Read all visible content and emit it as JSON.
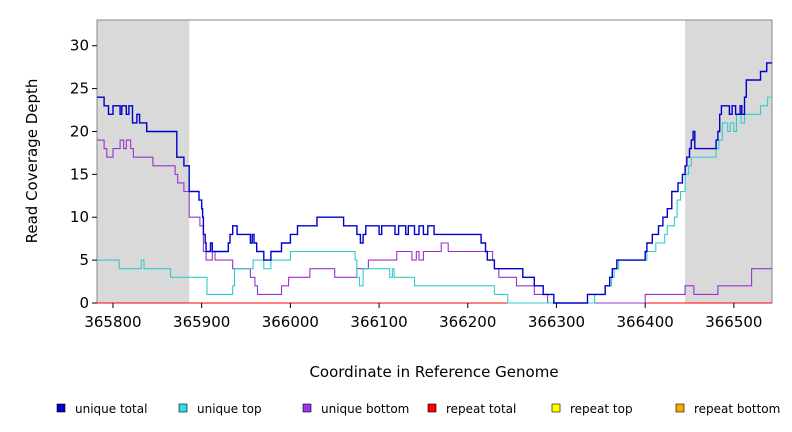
{
  "chart_data": {
    "type": "line",
    "title": "",
    "xlabel": "Coordinate in Reference Genome",
    "ylabel": "Read Coverage Depth",
    "xlim": [
      365782,
      366543
    ],
    "ylim": [
      0,
      33
    ],
    "xticks": [
      365800,
      365900,
      366000,
      366100,
      366200,
      366300,
      366400,
      366500
    ],
    "yticks": [
      0,
      5,
      10,
      15,
      20,
      25,
      30
    ],
    "shaded_regions": [
      [
        365782,
        365886
      ],
      [
        366445,
        366543
      ]
    ],
    "shade_color": "#d9d9d9",
    "legend_position": "bottom",
    "series": [
      {
        "name": "unique total",
        "color": "#0000cc",
        "points": [
          [
            365782,
            24
          ],
          [
            365790,
            23
          ],
          [
            365795,
            22
          ],
          [
            365800,
            23
          ],
          [
            365808,
            22
          ],
          [
            365810,
            23
          ],
          [
            365815,
            22
          ],
          [
            365818,
            23
          ],
          [
            365822,
            21
          ],
          [
            365827,
            22
          ],
          [
            365830,
            21
          ],
          [
            365838,
            20
          ],
          [
            365872,
            17
          ],
          [
            365880,
            16
          ],
          [
            365886,
            13
          ],
          [
            365897,
            12
          ],
          [
            365900,
            11
          ],
          [
            365901,
            10
          ],
          [
            365902,
            8
          ],
          [
            365904,
            7
          ],
          [
            365905,
            6
          ],
          [
            365910,
            7
          ],
          [
            365912,
            6
          ],
          [
            365930,
            7
          ],
          [
            365932,
            8
          ],
          [
            365935,
            9
          ],
          [
            365940,
            8
          ],
          [
            365955,
            7
          ],
          [
            365957,
            8
          ],
          [
            365959,
            7
          ],
          [
            365962,
            6
          ],
          [
            365970,
            5
          ],
          [
            365978,
            6
          ],
          [
            365990,
            7
          ],
          [
            366000,
            8
          ],
          [
            366008,
            9
          ],
          [
            366030,
            10
          ],
          [
            366060,
            9
          ],
          [
            366075,
            8
          ],
          [
            366079,
            7
          ],
          [
            366082,
            8
          ],
          [
            366085,
            9
          ],
          [
            366100,
            8
          ],
          [
            366103,
            9
          ],
          [
            366118,
            8
          ],
          [
            366122,
            9
          ],
          [
            366130,
            8
          ],
          [
            366133,
            9
          ],
          [
            366140,
            8
          ],
          [
            366145,
            9
          ],
          [
            366150,
            8
          ],
          [
            366155,
            9
          ],
          [
            366162,
            8
          ],
          [
            366170,
            8
          ],
          [
            366215,
            7
          ],
          [
            366220,
            6
          ],
          [
            366222,
            5
          ],
          [
            366230,
            4
          ],
          [
            366262,
            3
          ],
          [
            366275,
            2
          ],
          [
            366285,
            1
          ],
          [
            366297,
            0
          ],
          [
            366335,
            1
          ],
          [
            366355,
            2
          ],
          [
            366360,
            3
          ],
          [
            366363,
            4
          ],
          [
            366368,
            5
          ],
          [
            366400,
            6
          ],
          [
            366402,
            7
          ],
          [
            366408,
            8
          ],
          [
            366415,
            9
          ],
          [
            366420,
            10
          ],
          [
            366425,
            11
          ],
          [
            366430,
            13
          ],
          [
            366437,
            14
          ],
          [
            366442,
            15
          ],
          [
            366445,
            16
          ],
          [
            366447,
            17
          ],
          [
            366450,
            18
          ],
          [
            366452,
            19
          ],
          [
            366454,
            20
          ],
          [
            366456,
            18
          ],
          [
            366480,
            19
          ],
          [
            366482,
            20
          ],
          [
            366484,
            22
          ],
          [
            366486,
            23
          ],
          [
            366495,
            22
          ],
          [
            366498,
            23
          ],
          [
            366502,
            22
          ],
          [
            366507,
            23
          ],
          [
            366509,
            22
          ],
          [
            366512,
            24
          ],
          [
            366514,
            26
          ],
          [
            366530,
            27
          ],
          [
            366537,
            28
          ],
          [
            366543,
            28
          ]
        ]
      },
      {
        "name": "unique top",
        "color": "#33cccc",
        "points": [
          [
            365782,
            5
          ],
          [
            365807,
            4
          ],
          [
            365832,
            5
          ],
          [
            365835,
            4
          ],
          [
            365865,
            3
          ],
          [
            365906,
            1
          ],
          [
            365935,
            2
          ],
          [
            365937,
            4
          ],
          [
            365958,
            5
          ],
          [
            365963,
            5
          ],
          [
            365970,
            4
          ],
          [
            365978,
            5
          ],
          [
            366000,
            6
          ],
          [
            366073,
            5
          ],
          [
            366075,
            3
          ],
          [
            366078,
            2
          ],
          [
            366082,
            4
          ],
          [
            366112,
            3
          ],
          [
            366115,
            4
          ],
          [
            366117,
            3
          ],
          [
            366140,
            2
          ],
          [
            366230,
            1
          ],
          [
            366245,
            0
          ],
          [
            366343,
            1
          ],
          [
            366355,
            2
          ],
          [
            366362,
            3
          ],
          [
            366365,
            4
          ],
          [
            366370,
            5
          ],
          [
            366400,
            5
          ],
          [
            366402,
            6
          ],
          [
            366412,
            7
          ],
          [
            366422,
            8
          ],
          [
            366425,
            9
          ],
          [
            366433,
            10
          ],
          [
            366436,
            12
          ],
          [
            366440,
            13
          ],
          [
            366445,
            15
          ],
          [
            366449,
            16
          ],
          [
            366452,
            17
          ],
          [
            366480,
            18
          ],
          [
            366483,
            19
          ],
          [
            366487,
            21
          ],
          [
            366493,
            20
          ],
          [
            366496,
            21
          ],
          [
            366500,
            20
          ],
          [
            366503,
            22
          ],
          [
            366508,
            21
          ],
          [
            366512,
            22
          ],
          [
            366530,
            23
          ],
          [
            366538,
            24
          ],
          [
            366543,
            24
          ]
        ]
      },
      {
        "name": "unique bottom",
        "color": "#9933cc",
        "points": [
          [
            365782,
            19
          ],
          [
            365790,
            18
          ],
          [
            365793,
            17
          ],
          [
            365800,
            18
          ],
          [
            365808,
            19
          ],
          [
            365812,
            18
          ],
          [
            365815,
            19
          ],
          [
            365820,
            18
          ],
          [
            365823,
            17
          ],
          [
            365845,
            16
          ],
          [
            365870,
            15
          ],
          [
            365873,
            14
          ],
          [
            365880,
            13
          ],
          [
            365886,
            10
          ],
          [
            365898,
            9
          ],
          [
            365902,
            6
          ],
          [
            365905,
            5
          ],
          [
            365912,
            6
          ],
          [
            365915,
            5
          ],
          [
            365935,
            4
          ],
          [
            365955,
            3
          ],
          [
            365960,
            2
          ],
          [
            365963,
            1
          ],
          [
            365990,
            2
          ],
          [
            365998,
            3
          ],
          [
            366022,
            4
          ],
          [
            366050,
            3
          ],
          [
            366075,
            4
          ],
          [
            366088,
            5
          ],
          [
            366120,
            6
          ],
          [
            366137,
            5
          ],
          [
            366142,
            6
          ],
          [
            366145,
            5
          ],
          [
            366150,
            6
          ],
          [
            366170,
            7
          ],
          [
            366178,
            6
          ],
          [
            366228,
            5
          ],
          [
            366230,
            4
          ],
          [
            366235,
            3
          ],
          [
            366255,
            2
          ],
          [
            366275,
            1
          ],
          [
            366290,
            0
          ],
          [
            366400,
            1
          ],
          [
            366445,
            2
          ],
          [
            366455,
            1
          ],
          [
            366482,
            2
          ],
          [
            366520,
            4
          ],
          [
            366543,
            4
          ]
        ]
      },
      {
        "name": "repeat total",
        "color": "#ff0000",
        "points": [
          [
            365782,
            0
          ],
          [
            366543,
            0
          ]
        ]
      },
      {
        "name": "repeat top",
        "color": "#ffff00",
        "points": [
          [
            365782,
            0
          ],
          [
            366543,
            0
          ]
        ]
      },
      {
        "name": "repeat bottom",
        "color": "#ffaa00",
        "points": [
          [
            365782,
            0
          ],
          [
            366543,
            0
          ]
        ]
      }
    ]
  },
  "legend": [
    {
      "label": "unique total",
      "color": "#0000cc"
    },
    {
      "label": "unique top",
      "color": "#33dddd"
    },
    {
      "label": "unique bottom",
      "color": "#9933ee"
    },
    {
      "label": "repeat total",
      "color": "#ff0000"
    },
    {
      "label": "repeat top",
      "color": "#ffff00"
    },
    {
      "label": "repeat bottom",
      "color": "#ffaa00"
    }
  ]
}
